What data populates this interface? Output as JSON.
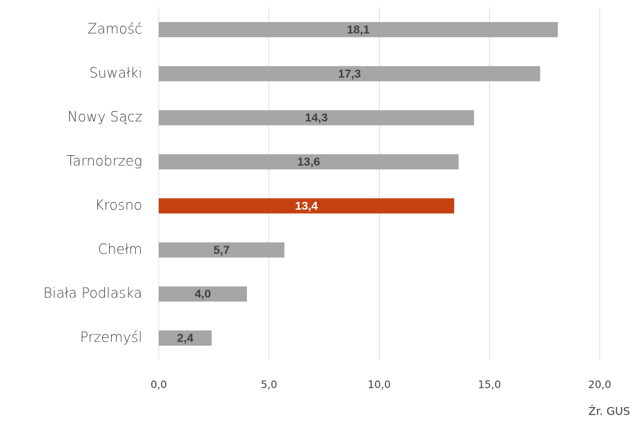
{
  "chart_data": {
    "type": "barh",
    "categories": [
      "Zamość",
      "Suwałki",
      "Nowy Sącz",
      "Tarnobrzeg",
      "Krosno",
      "Chełm",
      "Biała Podlaska",
      "Przemyśl"
    ],
    "values": [
      18.1,
      17.3,
      14.3,
      13.6,
      13.4,
      5.7,
      4.0,
      2.4
    ],
    "value_labels": [
      "18,1",
      "17,3",
      "14,3",
      "13,6",
      "13,4",
      "5,7",
      "4,0",
      "2,4"
    ],
    "colors": [
      "#a6a6a6",
      "#a6a6a6",
      "#a6a6a6",
      "#a6a6a6",
      "#c5410f",
      "#a6a6a6",
      "#a6a6a6",
      "#a6a6a6"
    ],
    "xlim": [
      0,
      20
    ],
    "xticks": [
      {
        "value": 0,
        "label": "0,0"
      },
      {
        "value": 5,
        "label": "5,0"
      },
      {
        "value": 10,
        "label": "10,0"
      },
      {
        "value": 15,
        "label": "15,0"
      },
      {
        "value": 20,
        "label": "20,0"
      }
    ],
    "grid": true,
    "annotation": "Źr. GUS"
  }
}
